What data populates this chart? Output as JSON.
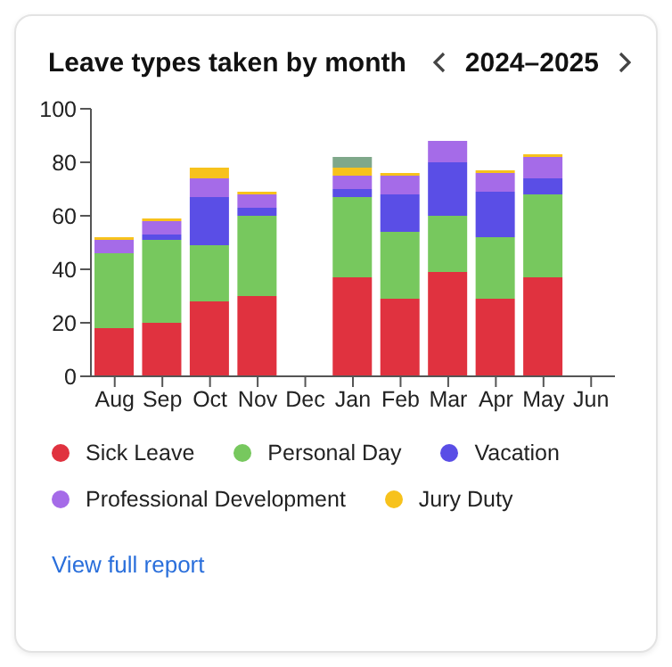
{
  "chart_data": {
    "type": "bar",
    "title": "Leave types taken by month",
    "subtitle": "2024–2025",
    "annotations": [
      "View full report"
    ],
    "categories": [
      "Aug",
      "Sep",
      "Oct",
      "Nov",
      "Dec",
      "Jan",
      "Feb",
      "Mar",
      "Apr",
      "May",
      "Jun"
    ],
    "stacked": true,
    "ylim": [
      0,
      100
    ],
    "yticks": [
      0,
      20,
      40,
      60,
      80,
      100
    ],
    "grid": false,
    "legend": "bottom",
    "series": [
      {
        "name": "Sick Leave",
        "color": "#e0323f",
        "values": [
          18,
          20,
          28,
          30,
          null,
          37,
          29,
          39,
          29,
          37,
          null
        ]
      },
      {
        "name": "Personal Day",
        "color": "#77c85e",
        "values": [
          28,
          31,
          21,
          30,
          null,
          30,
          25,
          21,
          23,
          31,
          null
        ]
      },
      {
        "name": "Vacation",
        "color": "#5a4ee6",
        "values": [
          0,
          2,
          18,
          3,
          null,
          3,
          14,
          20,
          17,
          6,
          null
        ]
      },
      {
        "name": "Professional Development",
        "color": "#a56be8",
        "values": [
          5,
          5,
          7,
          5,
          null,
          5,
          7,
          8,
          7,
          8,
          null
        ]
      },
      {
        "name": "Jury Duty",
        "color": "#f7c21c",
        "values": [
          1,
          1,
          4,
          1,
          null,
          3,
          1,
          null,
          1,
          1,
          null
        ]
      },
      {
        "color": "#7fa88a",
        "values": [
          null,
          null,
          null,
          null,
          null,
          4,
          null,
          null,
          null,
          null,
          null
        ]
      }
    ]
  }
}
